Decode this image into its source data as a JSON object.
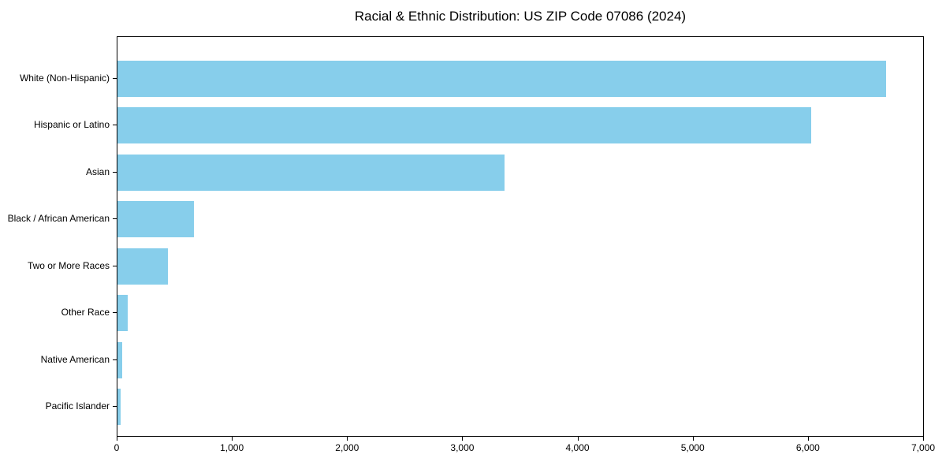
{
  "title": "Racial & Ethnic Distribution: US ZIP Code 07086 (2024)",
  "chart_data": {
    "type": "bar",
    "orientation": "horizontal",
    "title": "Racial & Ethnic Distribution: US ZIP Code 07086 (2024)",
    "xlabel": "",
    "ylabel": "",
    "categories": [
      "White (Non-Hispanic)",
      "Hispanic or Latino",
      "Asian",
      "Black / African American",
      "Two or More Races",
      "Other Race",
      "Native American",
      "Pacific Islander"
    ],
    "values": [
      6675,
      6025,
      3360,
      665,
      440,
      87,
      44,
      25
    ],
    "xlim": [
      0,
      7000
    ],
    "xticks": [
      0,
      1000,
      2000,
      3000,
      4000,
      5000,
      6000,
      7000
    ],
    "xtick_labels": [
      "0",
      "1,000",
      "2,000",
      "3,000",
      "4,000",
      "5,000",
      "6,000",
      "7,000"
    ],
    "bar_color": "#87CEEB",
    "axis_color": "#000000",
    "grid": false,
    "legend": false
  }
}
